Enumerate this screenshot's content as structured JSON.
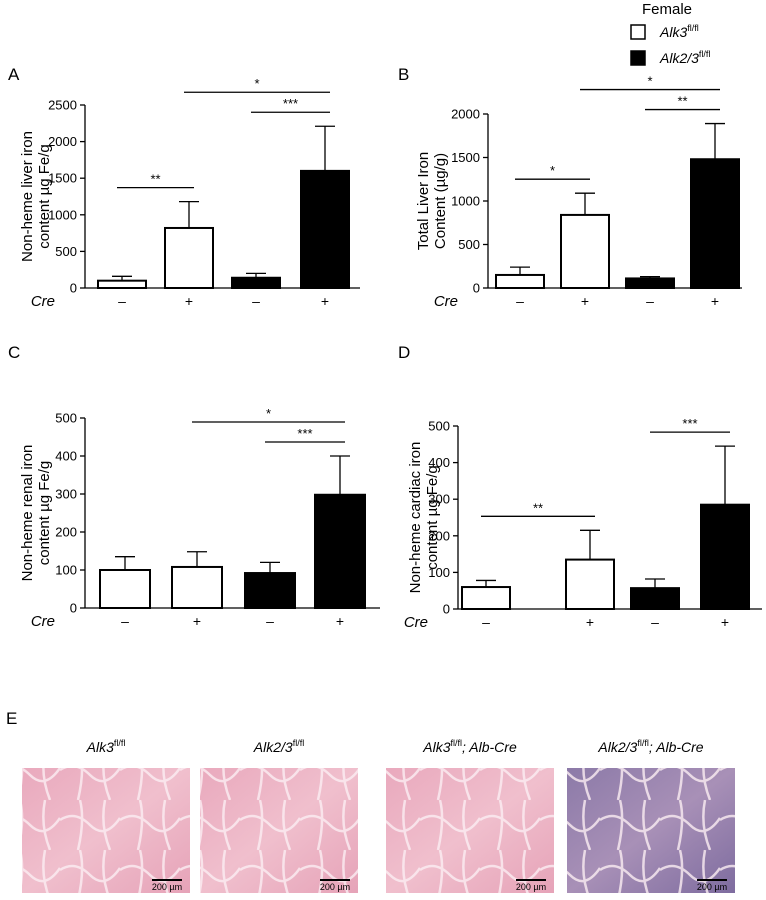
{
  "legend": {
    "title": "Female",
    "items": [
      {
        "label": "Alk3",
        "superscript": "fl/fl",
        "color": "#ffffff"
      },
      {
        "label": "Alk2/3",
        "superscript": "fl/fl",
        "color": "#000000"
      }
    ]
  },
  "chart_data": [
    {
      "type": "bar",
      "panel": "A",
      "y_label": [
        "Non-heme liver iron",
        "content µg Fe/g"
      ],
      "x_label": "Cre",
      "categories": [
        "–",
        "+",
        "–",
        "+"
      ],
      "values": [
        100,
        820,
        140,
        1600
      ],
      "errors": [
        60,
        360,
        60,
        610
      ],
      "colors": [
        "#ffffff",
        "#ffffff",
        "#000000",
        "#000000"
      ],
      "ylim": [
        0,
        2500
      ],
      "yticks": [
        0,
        500,
        1000,
        1500,
        2000,
        2500
      ],
      "brackets": [
        {
          "from": 0,
          "to": 1,
          "label": "**"
        },
        {
          "from": 2,
          "to": 3,
          "label": "***"
        },
        {
          "from": 1,
          "to": 3,
          "label": "*"
        }
      ]
    },
    {
      "type": "bar",
      "panel": "B",
      "y_label": [
        "Total Liver Iron",
        "Content (µg/g)"
      ],
      "x_label": "Cre",
      "categories": [
        "–",
        "+",
        "–",
        "+"
      ],
      "values": [
        150,
        840,
        110,
        1480
      ],
      "errors": [
        90,
        250,
        20,
        410
      ],
      "colors": [
        "#ffffff",
        "#ffffff",
        "#000000",
        "#000000"
      ],
      "ylim": [
        0,
        2000
      ],
      "yticks": [
        0,
        500,
        1000,
        1500,
        2000
      ],
      "brackets": [
        {
          "from": 0,
          "to": 1,
          "label": "*"
        },
        {
          "from": 2,
          "to": 3,
          "label": "**"
        },
        {
          "from": 1,
          "to": 3,
          "label": "*"
        }
      ]
    },
    {
      "type": "bar",
      "panel": "C",
      "y_label": [
        "Non-heme renal iron",
        "content µg Fe/g"
      ],
      "x_label": "Cre",
      "categories": [
        "–",
        "+",
        "–",
        "+"
      ],
      "values": [
        100,
        108,
        92,
        298
      ],
      "errors": [
        35,
        40,
        28,
        102
      ],
      "colors": [
        "#ffffff",
        "#ffffff",
        "#000000",
        "#000000"
      ],
      "ylim": [
        0,
        500
      ],
      "yticks": [
        0,
        100,
        200,
        300,
        400,
        500
      ],
      "brackets": [
        {
          "from": 2,
          "to": 3,
          "label": "***"
        },
        {
          "from": 1,
          "to": 3,
          "label": "*"
        }
      ]
    },
    {
      "type": "bar",
      "panel": "D",
      "y_label": [
        "Non-heme cardiac iron",
        "content µg Fe/g"
      ],
      "x_label": "Cre",
      "categories": [
        "–",
        "+",
        "–",
        "+"
      ],
      "values": [
        60,
        135,
        57,
        285
      ],
      "errors": [
        18,
        80,
        25,
        160
      ],
      "colors": [
        "#ffffff",
        "#ffffff",
        "#000000",
        "#000000"
      ],
      "ylim": [
        0,
        500
      ],
      "yticks": [
        0,
        100,
        200,
        300,
        400,
        500
      ],
      "brackets": [
        {
          "from": 0,
          "to": 1,
          "label": "**"
        },
        {
          "from": 2,
          "to": 3,
          "label": "***"
        }
      ]
    }
  ],
  "histology": {
    "panel": "E",
    "images": [
      {
        "label": "Alk3",
        "superscript": "fl/fl",
        "suffix": "",
        "scale_bar": "200 µm"
      },
      {
        "label": "Alk2/3",
        "superscript": "fl/fl",
        "suffix": "",
        "scale_bar": "200 µm"
      },
      {
        "label": "Alk3",
        "superscript": "fl/fl",
        "suffix": "; Alb-Cre",
        "scale_bar": "200 µm"
      },
      {
        "label": "Alk2/3",
        "superscript": "fl/fl",
        "suffix": "; Alb-Cre",
        "scale_bar": "200 µm"
      }
    ]
  }
}
